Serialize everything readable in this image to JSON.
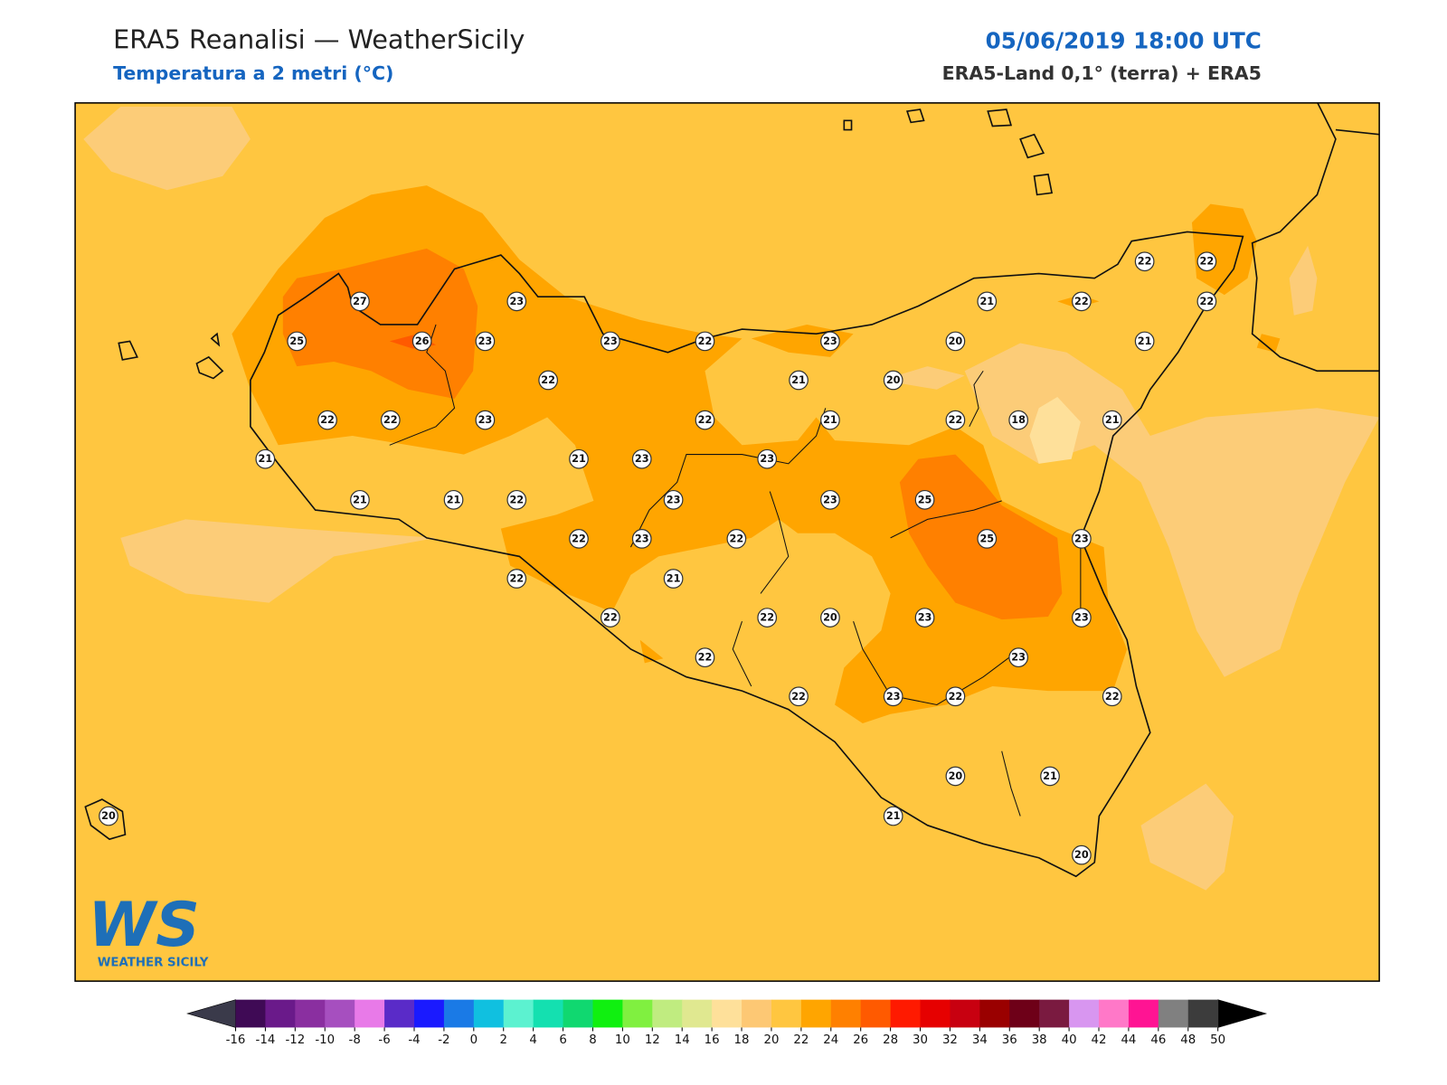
{
  "header": {
    "title": "ERA5 Reanalisi — WeatherSicily",
    "subtitle": "Temperatura a 2 metri (°C)",
    "datetime": "05/06/2019 18:00 UTC",
    "source": "ERA5-Land 0,1° (terra) + ERA5"
  },
  "logo": {
    "mark": "WS",
    "name": "WEATHER SICILY"
  },
  "stations": [
    27,
    25,
    26,
    23,
    23,
    23,
    22,
    22,
    23,
    21,
    20,
    20,
    21,
    22,
    22,
    22,
    22,
    21,
    22,
    22,
    23,
    22,
    21,
    22,
    18,
    21,
    21,
    21,
    23,
    23,
    21,
    21,
    22,
    23,
    23,
    25,
    22,
    23,
    22,
    25,
    23,
    22,
    21,
    22,
    22,
    20,
    23,
    23,
    22,
    23,
    22,
    23,
    22,
    22,
    20,
    21,
    21,
    20,
    20
  ],
  "colorbar": {
    "ticks": [
      -16,
      -14,
      -12,
      -10,
      -8,
      -6,
      -4,
      -2,
      0,
      2,
      4,
      6,
      8,
      10,
      12,
      14,
      16,
      18,
      20,
      22,
      24,
      26,
      28,
      30,
      32,
      34,
      36,
      38,
      40,
      42,
      44,
      46,
      48,
      50
    ],
    "colors": [
      "#3f0a55",
      "#6a1a8a",
      "#8a2fa0",
      "#a64fbf",
      "#e87ae8",
      "#5a2bc8",
      "#1a1aff",
      "#1a7ae6",
      "#10c0e0",
      "#5cf2d0",
      "#14e0b0",
      "#10d870",
      "#10f010",
      "#80f040",
      "#c0ec80",
      "#e0e890",
      "#fee09a",
      "#fdc874",
      "#ffc640",
      "#ffa500",
      "#ff8000",
      "#ff5a00",
      "#ff1a00",
      "#e60000",
      "#c80010",
      "#9a0000",
      "#6e0018",
      "#7a1a40",
      "#d896f0",
      "#ff78c8",
      "#ff1493",
      "#808080",
      "#3c3c3c"
    ],
    "under": "#3a3a4a",
    "over": "#000000"
  }
}
